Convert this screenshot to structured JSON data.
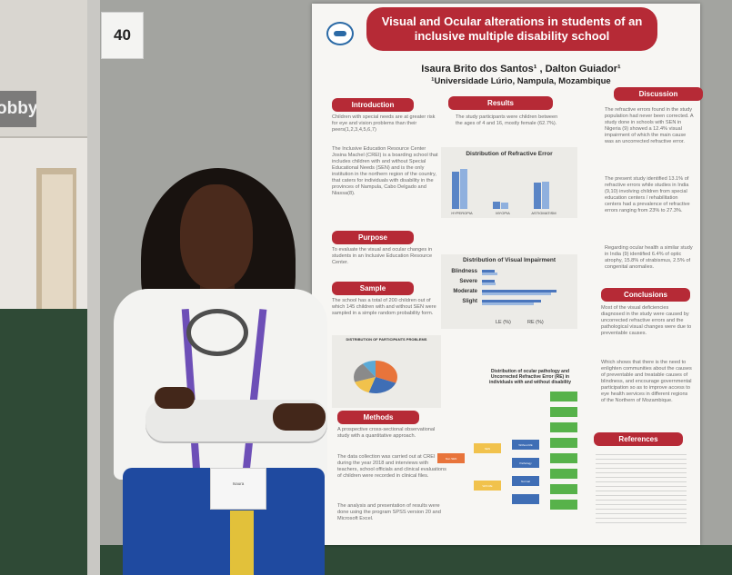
{
  "booth_number": "40",
  "lobby_sign": "obby",
  "poster": {
    "title": "Visual and Ocular alterations in students of an inclusive multiple disability school",
    "authors": "Isaura Brito dos Santos¹ , Dalton Guiador¹",
    "institution": "¹Universidade Lúrio, Nampula, Mozambique",
    "sections": {
      "introduction": "Introduction",
      "purpose": "Purpose",
      "sample": "Sample",
      "methods": "Methods",
      "results": "Results",
      "discussion": "Discussion",
      "conclusions": "Conclusions",
      "references": "References"
    },
    "texts": {
      "intro1": "Children with special needs are at greater risk for eye and vision problems than their peers(1,2,3,4,5,6,7)",
      "intro2": "The Inclusive Education Resource Center Josina Machel (CREI) is a boarding school that includes children with and without Special Educational Needs (SEN) and is the only institution in the northern region of the country, that caters for individuals with disability in the provinces of Nampula, Cabo Delgado and Niassa(8).",
      "purpose": "To evaluate the visual and ocular changes in students in an Inclusive Education Resource Center.",
      "sample": "The school has a total of 200 children out of which 145 children with and without SEN were sampled in a simple random probability form.",
      "methods1": "A prospective cross-sectional observational study with a quantitative approach.",
      "methods2": "The data collection was carried out at CREI during the year 2018 and interviews with teachers, school officials and clinical evaluations of children were recorded in clinical files.",
      "methods3": "The analysis and presentation of results were done using the program SPSS version 20 and Microsoft Excel.",
      "results1": "The study participants were children between the ages of 4 and 16, mostly female (62.7%).",
      "discussion1": "The refractive errors found in the study population had never been corrected. A study done in schools with SEN in Nigeria (9) showed a 12.4% visual impairment of which the main cause was an uncorrected refractive error.",
      "discussion2": "The present study identified 13.1% of refractive errors while studies in India (9,10) involving children from special education centers / rehabilitation centers had a prevalence of refractive errors ranging from 23% to 27.3%.",
      "discussion3": "Regarding ocular health a similar study in India (9) identified 6.4% of optic atrophy, 15.8% of strabismus, 2.5% of congenital anomalies.",
      "conclusions1": "Most of the visual deficiencies diagnosed in the study were caused by uncorrected refractive errors and the pathological visual changes were due to preventable causes.",
      "conclusions2": "Which shows that there is the need to enlighten communities about the causes of preventable and treatable causes of blindness, and encourage governmental participation so as to improve access to eye health services in different regions of the Northern of Mozambique."
    },
    "chart_data": [
      {
        "type": "bar",
        "title": "Distribution of Refractive Error",
        "categories": [
          "HYPEROPIA",
          "MYOPIA",
          "ASTIGMATISM"
        ],
        "series": [
          {
            "values": [
              45,
              9,
              32
            ]
          },
          {
            "values": [
              48,
              8,
              33
            ]
          }
        ],
        "ylim": [
          0,
          55
        ],
        "colors": [
          "#5a85c6",
          "#8fb0de"
        ]
      },
      {
        "type": "bar",
        "orientation": "horizontal",
        "title": "Distribution of Visual Impairment",
        "categories": [
          "Blindness",
          "Severe",
          "Moderate",
          "Slight"
        ],
        "series": [
          {
            "name": "LE (%)",
            "values": [
              1.2,
              1.2,
              6.9,
              5.5
            ]
          },
          {
            "name": "RE (%)",
            "values": [
              1.4,
              1.3,
              6.4,
              4.8
            ]
          }
        ],
        "xlim": [
          0,
          8
        ],
        "colors": [
          "#4a76bd",
          "#9bb8e0"
        ]
      },
      {
        "type": "pie",
        "title": "DISTRIBUTION OF PARTICIPANTS PROBLEMS",
        "values": [
          31,
          24,
          15,
          20,
          10
        ],
        "colors": [
          "#e8743b",
          "#3f6eb5",
          "#f1c24c",
          "#8a8a8a",
          "#5aa9d6"
        ]
      }
    ],
    "flow_caption": "Distribution of ocular pathology and Uncorrected Refractive Error (RE) in individuals with and without disability",
    "flow_box_labels": [
      "Non SEN",
      "SEN",
      "With RE",
      "Without RE",
      "Pathology",
      "Normal"
    ]
  },
  "badge_text": "Isaura"
}
